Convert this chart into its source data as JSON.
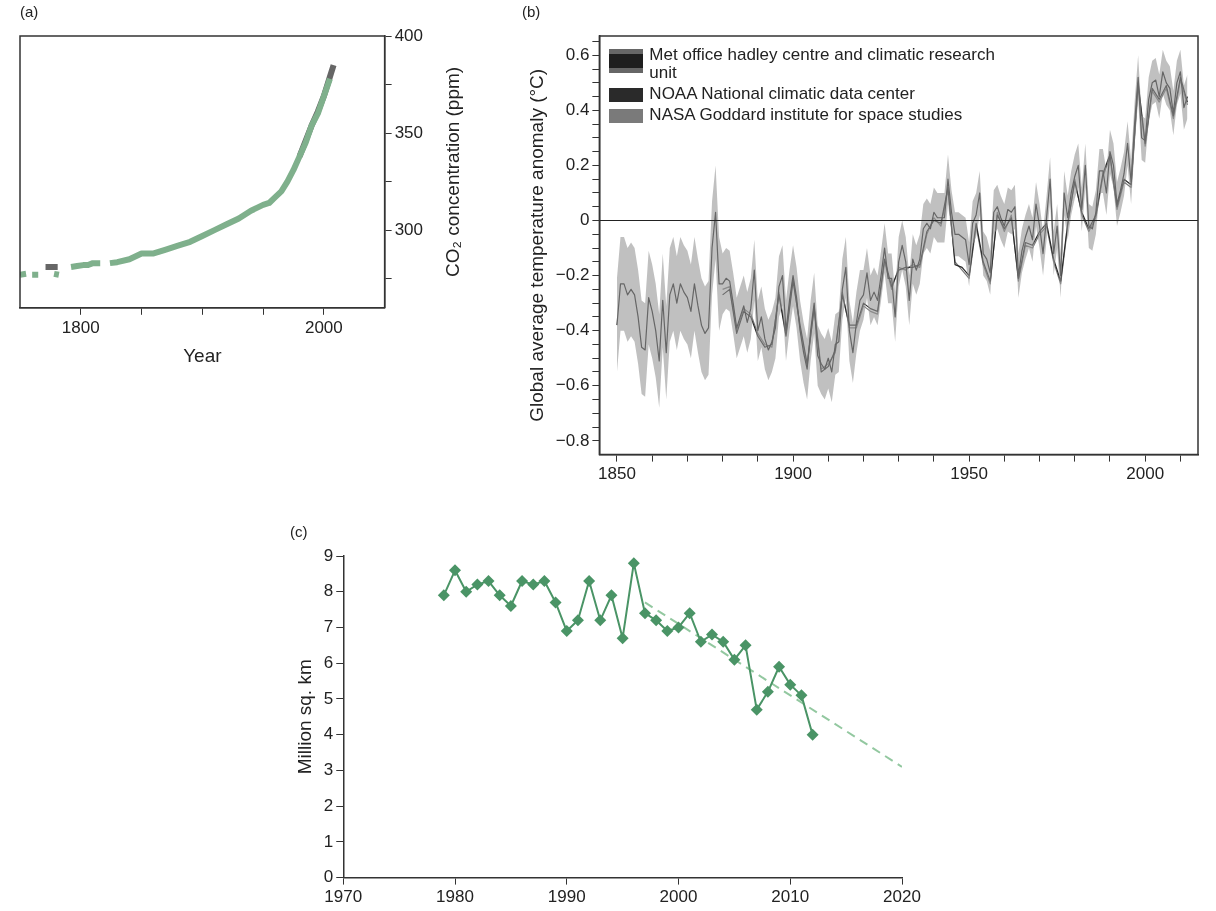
{
  "chart_data": [
    {
      "type": "line",
      "title": "(a)",
      "xlabel": "Year",
      "ylabel": "CO₂ concentration (ppm)",
      "xlim": [
        1750,
        2050
      ],
      "ylim": [
        260,
        400
      ],
      "xticks": [
        1800,
        {
          "value": 1850,
          "label": null
        },
        {
          "value": 1900,
          "label": null
        },
        {
          "value": 1950,
          "label": null
        },
        2000
      ],
      "yticks": [
        {
          "value": 275,
          "label": null
        },
        300,
        {
          "value": 325,
          "label": null
        },
        350,
        {
          "value": 375,
          "label": null
        },
        400
      ],
      "grid": false,
      "legend": false,
      "series": [
        {
          "color": "#7fb08c",
          "x": [
            1750,
            1755,
            1757,
            1760,
            1765,
            1770,
            1778,
            1782,
            1786,
            1792,
            1797,
            1802,
            1806,
            1810,
            1816,
            1820,
            1824,
            1830,
            1840,
            1850,
            1860,
            1870,
            1880,
            1890,
            1900,
            1910,
            1920,
            1930,
            1940,
            1950,
            1955,
            1960,
            1965,
            1970,
            1975,
            1980,
            1985,
            1990,
            1995,
            2000,
            2005
          ],
          "values": [
            277,
            277.5,
            null,
            277,
            277,
            null,
            277.5,
            277,
            null,
            281,
            281.5,
            282,
            282,
            283,
            283,
            null,
            283,
            283.5,
            285,
            288,
            288,
            290,
            292,
            294,
            297,
            300,
            303,
            306,
            310,
            313,
            314,
            317,
            320,
            325,
            331,
            338,
            345,
            354,
            360,
            369,
            378
          ]
        },
        {
          "color": "#666666",
          "x": [
            1771,
            1781,
            1790,
            1980,
            1985,
            1990,
            1995,
            2000,
            2005,
            2008
          ],
          "values": [
            281,
            281,
            null,
            338,
            346,
            354,
            361,
            369,
            379,
            385
          ]
        }
      ]
    },
    {
      "type": "line",
      "title": "(b)",
      "ylabel": "Global average temperature anomaly (°C)",
      "xlim": [
        1845,
        2015
      ],
      "ylim": [
        -0.85,
        0.67
      ],
      "xticks": [
        1850,
        {
          "value": 1860,
          "label": null
        },
        {
          "value": 1870,
          "label": null
        },
        {
          "value": 1880,
          "label": null
        },
        {
          "value": 1890,
          "label": null
        },
        1900,
        {
          "value": 1910,
          "label": null
        },
        {
          "value": 1920,
          "label": null
        },
        {
          "value": 1930,
          "label": null
        },
        {
          "value": 1940,
          "label": null
        },
        1950,
        {
          "value": 1960,
          "label": null
        },
        {
          "value": 1970,
          "label": null
        },
        {
          "value": 1980,
          "label": null
        },
        {
          "value": 1990,
          "label": null
        },
        2000,
        {
          "value": 2010,
          "label": null
        }
      ],
      "yticks": [
        {
          "value": -0.8,
          "label": "−0.8"
        },
        {
          "value": -0.75,
          "label": null
        },
        {
          "value": -0.7,
          "label": null
        },
        {
          "value": -0.65,
          "label": null
        },
        {
          "value": -0.6,
          "label": "−0.6"
        },
        {
          "value": -0.55,
          "label": null
        },
        {
          "value": -0.5,
          "label": null
        },
        {
          "value": -0.45,
          "label": null
        },
        {
          "value": -0.4,
          "label": "−0.4"
        },
        {
          "value": -0.35,
          "label": null
        },
        {
          "value": -0.3,
          "label": null
        },
        {
          "value": -0.25,
          "label": null
        },
        {
          "value": -0.2,
          "label": "−0.2"
        },
        {
          "value": -0.15,
          "label": null
        },
        {
          "value": -0.1,
          "label": null
        },
        {
          "value": -0.05,
          "label": null
        },
        0,
        {
          "value": 0.05,
          "label": null
        },
        {
          "value": 0.1,
          "label": null
        },
        {
          "value": 0.15,
          "label": null
        },
        0.2,
        {
          "value": 0.25,
          "label": null
        },
        {
          "value": 0.3,
          "label": null
        },
        {
          "value": 0.35,
          "label": null
        },
        0.4,
        {
          "value": 0.45,
          "label": null
        },
        {
          "value": 0.5,
          "label": null
        },
        {
          "value": 0.55,
          "label": null
        },
        0.6,
        {
          "value": 0.65,
          "label": null
        }
      ],
      "grid": false,
      "legend": "top left",
      "ref_lines": [
        {
          "axis": "y",
          "value": 0,
          "color": "#222222"
        }
      ],
      "series": [
        {
          "name": "Met office hadley centre and climatic research unit",
          "color": "#1e1e1e",
          "x": [
            1850,
            1851,
            1852,
            1853,
            1854,
            1855,
            1856,
            1857,
            1858,
            1859,
            1860,
            1861,
            1862,
            1863,
            1864,
            1865,
            1866,
            1867,
            1868,
            1869,
            1870,
            1871,
            1872,
            1873,
            1874,
            1875,
            1876,
            1877,
            1878,
            1879,
            1880,
            1881,
            1882,
            1883,
            1884,
            1885,
            1886,
            1887,
            1888,
            1889,
            1890,
            1891,
            1892,
            1893,
            1894,
            1895,
            1896,
            1897,
            1898,
            1899,
            1900,
            1901,
            1902,
            1903,
            1904,
            1905,
            1906,
            1907,
            1908,
            1909,
            1910,
            1911,
            1912,
            1913,
            1914,
            1915,
            1916,
            1917,
            1918,
            1919,
            1920,
            1921,
            1922,
            1923,
            1924,
            1925,
            1926,
            1927,
            1928,
            1929,
            1930,
            1931,
            1932,
            1933,
            1934,
            1935,
            1936,
            1937,
            1938,
            1939,
            1940,
            1941,
            1942,
            1943,
            1944,
            1945,
            1946,
            1947,
            1948,
            1949,
            1950,
            1951,
            1952,
            1953,
            1954,
            1955,
            1956,
            1957,
            1958,
            1959,
            1960,
            1961,
            1962,
            1963,
            1964,
            1965,
            1966,
            1967,
            1968,
            1969,
            1970,
            1971,
            1972,
            1973,
            1974,
            1975,
            1976,
            1977,
            1978,
            1979,
            1980,
            1981,
            1982,
            1983,
            1984,
            1985,
            1986,
            1987,
            1988,
            1989,
            1990,
            1991,
            1992,
            1993,
            1994,
            1995,
            1996,
            1997,
            1998,
            1999,
            2000,
            2001,
            2002,
            2003,
            2004,
            2005,
            2006,
            2007,
            2008,
            2009,
            2010,
            2011,
            2012
          ],
          "values": [
            -0.38,
            -0.23,
            -0.23,
            -0.27,
            -0.25,
            -0.27,
            -0.35,
            -0.46,
            -0.47,
            -0.28,
            -0.33,
            -0.4,
            -0.51,
            -0.29,
            -0.48,
            -0.27,
            -0.23,
            -0.3,
            -0.23,
            -0.26,
            -0.28,
            -0.33,
            -0.23,
            -0.31,
            -0.38,
            -0.41,
            -0.39,
            -0.1,
            0.03,
            -0.23,
            -0.23,
            -0.21,
            -0.22,
            -0.3,
            -0.39,
            -0.35,
            -0.31,
            -0.37,
            -0.32,
            -0.18,
            -0.4,
            -0.35,
            -0.43,
            -0.47,
            -0.44,
            -0.39,
            -0.24,
            -0.2,
            -0.4,
            -0.29,
            -0.2,
            -0.28,
            -0.4,
            -0.48,
            -0.54,
            -0.4,
            -0.3,
            -0.49,
            -0.52,
            -0.54,
            -0.5,
            -0.55,
            -0.45,
            -0.44,
            -0.25,
            -0.17,
            -0.4,
            -0.48,
            -0.37,
            -0.29,
            -0.27,
            -0.19,
            -0.29,
            -0.26,
            -0.29,
            -0.2,
            -0.1,
            -0.21,
            -0.21,
            -0.35,
            -0.15,
            -0.09,
            -0.15,
            -0.29,
            -0.14,
            -0.18,
            -0.14,
            -0.03,
            -0.01,
            -0.03,
            0.03,
            0.01,
            0.01,
            0.01,
            0.15,
            0.03,
            -0.05,
            -0.05,
            -0.06,
            -0.07,
            -0.16,
            -0.01,
            0.02,
            0.1,
            -0.12,
            -0.14,
            -0.19,
            0.03,
            0.05,
            0.01,
            -0.02,
            0.04,
            0.03,
            0.05,
            -0.2,
            -0.11,
            -0.06,
            -0.02,
            -0.07,
            0.06,
            -0.02,
            -0.12,
            0.01,
            0.15,
            -0.12,
            -0.02,
            -0.2,
            0.1,
            0.01,
            0.1,
            0.16,
            0.2,
            0.04,
            0.2,
            -0.02,
            -0.03,
            0.03,
            0.18,
            0.18,
            0.1,
            0.25,
            0.2,
            0.06,
            0.11,
            0.17,
            0.28,
            0.14,
            0.35,
            0.52,
            0.3,
            0.29,
            0.44,
            0.5,
            0.51,
            0.45,
            0.54,
            0.5,
            0.48,
            0.39,
            0.5,
            0.54,
            0.41,
            0.45
          ],
          "lower": [
            -0.55,
            -0.4,
            -0.4,
            -0.44,
            -0.42,
            -0.44,
            -0.52,
            -0.63,
            -0.64,
            -0.45,
            -0.5,
            -0.57,
            -0.68,
            -0.46,
            -0.65,
            -0.44,
            -0.4,
            -0.47,
            -0.4,
            -0.43,
            -0.45,
            -0.5,
            -0.4,
            -0.48,
            -0.55,
            -0.58,
            -0.56,
            -0.27,
            -0.14,
            -0.4,
            -0.34,
            -0.32,
            -0.33,
            -0.41,
            -0.5,
            -0.46,
            -0.42,
            -0.48,
            -0.43,
            -0.29,
            -0.51,
            -0.46,
            -0.54,
            -0.58,
            -0.55,
            -0.5,
            -0.35,
            -0.31,
            -0.51,
            -0.4,
            -0.31,
            -0.39,
            -0.51,
            -0.59,
            -0.65,
            -0.51,
            -0.41,
            -0.6,
            -0.63,
            -0.65,
            -0.61,
            -0.66,
            -0.56,
            -0.55,
            -0.36,
            -0.28,
            -0.51,
            -0.59,
            -0.48,
            -0.4,
            -0.36,
            -0.28,
            -0.38,
            -0.35,
            -0.38,
            -0.29,
            -0.19,
            -0.3,
            -0.3,
            -0.44,
            -0.24,
            -0.18,
            -0.24,
            -0.38,
            -0.23,
            -0.27,
            -0.23,
            -0.12,
            -0.1,
            -0.12,
            -0.06,
            -0.08,
            -0.08,
            -0.08,
            0.06,
            -0.05,
            -0.13,
            -0.13,
            -0.14,
            -0.15,
            -0.24,
            -0.09,
            -0.06,
            0.02,
            -0.2,
            -0.22,
            -0.27,
            -0.05,
            -0.03,
            -0.07,
            -0.1,
            -0.04,
            -0.05,
            -0.03,
            -0.28,
            -0.19,
            -0.14,
            -0.1,
            -0.15,
            -0.02,
            -0.1,
            -0.2,
            -0.07,
            0.07,
            -0.2,
            -0.1,
            -0.28,
            0.02,
            -0.07,
            0.02,
            0.08,
            0.12,
            -0.04,
            0.12,
            -0.1,
            -0.11,
            -0.05,
            0.1,
            0.1,
            0.02,
            0.17,
            0.12,
            -0.02,
            0.03,
            0.09,
            0.2,
            0.06,
            0.27,
            0.44,
            0.22,
            0.21,
            0.36,
            0.42,
            0.43,
            0.37,
            0.46,
            0.42,
            0.4,
            0.31,
            0.42,
            0.46,
            0.33,
            0.37
          ],
          "upper": [
            -0.21,
            -0.06,
            -0.06,
            -0.1,
            -0.08,
            -0.1,
            -0.18,
            -0.29,
            -0.3,
            -0.11,
            -0.16,
            -0.23,
            -0.34,
            -0.12,
            -0.31,
            -0.1,
            -0.06,
            -0.13,
            -0.06,
            -0.09,
            -0.11,
            -0.16,
            -0.06,
            -0.14,
            -0.21,
            -0.24,
            -0.22,
            0.07,
            0.2,
            -0.06,
            -0.12,
            -0.1,
            -0.11,
            -0.19,
            -0.28,
            -0.24,
            -0.2,
            -0.26,
            -0.21,
            -0.07,
            -0.29,
            -0.24,
            -0.32,
            -0.36,
            -0.33,
            -0.28,
            -0.13,
            -0.09,
            -0.29,
            -0.18,
            -0.09,
            -0.17,
            -0.29,
            -0.37,
            -0.43,
            -0.29,
            -0.19,
            -0.38,
            -0.41,
            -0.43,
            -0.39,
            -0.44,
            -0.34,
            -0.33,
            -0.14,
            -0.06,
            -0.29,
            -0.37,
            -0.26,
            -0.18,
            -0.18,
            -0.1,
            -0.2,
            -0.17,
            -0.2,
            -0.11,
            -0.01,
            -0.12,
            -0.12,
            -0.26,
            -0.06,
            0.0,
            -0.06,
            -0.2,
            -0.05,
            -0.09,
            -0.05,
            0.06,
            0.08,
            0.06,
            0.12,
            0.1,
            0.1,
            0.1,
            0.24,
            0.11,
            0.03,
            0.03,
            0.02,
            0.01,
            -0.08,
            0.07,
            0.1,
            0.18,
            -0.04,
            -0.06,
            -0.11,
            0.11,
            0.13,
            0.09,
            0.06,
            0.12,
            0.11,
            0.13,
            -0.12,
            -0.03,
            0.02,
            0.06,
            0.01,
            0.14,
            0.06,
            -0.04,
            0.09,
            0.23,
            -0.04,
            0.06,
            -0.12,
            0.18,
            0.09,
            0.18,
            0.24,
            0.28,
            0.12,
            0.28,
            0.06,
            0.05,
            0.11,
            0.26,
            0.26,
            0.18,
            0.33,
            0.28,
            0.14,
            0.19,
            0.25,
            0.36,
            0.22,
            0.43,
            0.6,
            0.38,
            0.37,
            0.52,
            0.58,
            0.59,
            0.53,
            0.62,
            0.58,
            0.56,
            0.47,
            0.58,
            0.62,
            0.49,
            0.53
          ]
        },
        {
          "name": "NOAA National climatic data center",
          "color": "#2a2a2a",
          "x": [
            1880,
            1882,
            1884,
            1886,
            1888,
            1890,
            1892,
            1894,
            1896,
            1898,
            1900,
            1902,
            1904,
            1906,
            1908,
            1910,
            1912,
            1914,
            1916,
            1918,
            1920,
            1922,
            1924,
            1926,
            1928,
            1930,
            1932,
            1934,
            1936,
            1938,
            1940,
            1942,
            1944,
            1946,
            1948,
            1950,
            1952,
            1954,
            1956,
            1958,
            1960,
            1962,
            1964,
            1966,
            1968,
            1970,
            1972,
            1974,
            1976,
            1978,
            1980,
            1982,
            1984,
            1986,
            1988,
            1990,
            1992,
            1994,
            1996,
            1998,
            2000,
            2002,
            2004,
            2006,
            2008,
            2010,
            2012
          ],
          "values": [
            -0.27,
            -0.25,
            -0.41,
            -0.33,
            -0.35,
            -0.42,
            -0.46,
            -0.45,
            -0.27,
            -0.42,
            -0.22,
            -0.38,
            -0.52,
            -0.32,
            -0.55,
            -0.53,
            -0.47,
            -0.27,
            -0.38,
            -0.38,
            -0.3,
            -0.32,
            -0.33,
            -0.14,
            -0.24,
            -0.18,
            -0.17,
            -0.17,
            -0.16,
            -0.04,
            0.0,
            -0.01,
            0.12,
            -0.16,
            -0.17,
            -0.2,
            -0.01,
            -0.15,
            -0.22,
            0.02,
            -0.03,
            0.01,
            -0.21,
            -0.08,
            -0.09,
            -0.04,
            -0.01,
            -0.14,
            -0.22,
            -0.01,
            0.14,
            0.03,
            -0.03,
            0.02,
            0.17,
            0.24,
            0.05,
            0.15,
            0.13,
            0.5,
            0.28,
            0.48,
            0.44,
            0.49,
            0.38,
            0.52,
            0.43
          ]
        },
        {
          "name": "NASA Goddard institute for space studies",
          "color": "#7a7a7a",
          "x": [
            1880,
            1882,
            1884,
            1886,
            1888,
            1890,
            1892,
            1894,
            1896,
            1898,
            1900,
            1902,
            1904,
            1906,
            1908,
            1910,
            1912,
            1914,
            1916,
            1918,
            1920,
            1922,
            1924,
            1926,
            1928,
            1930,
            1932,
            1934,
            1936,
            1938,
            1940,
            1942,
            1944,
            1946,
            1948,
            1950,
            1952,
            1954,
            1956,
            1958,
            1960,
            1962,
            1964,
            1966,
            1968,
            1970,
            1972,
            1974,
            1976,
            1978,
            1980,
            1982,
            1984,
            1986,
            1988,
            1990,
            1992,
            1994,
            1996,
            1998,
            2000,
            2002,
            2004,
            2006,
            2008,
            2010,
            2012
          ],
          "values": [
            -0.25,
            -0.24,
            -0.4,
            -0.32,
            -0.34,
            -0.41,
            -0.45,
            -0.46,
            -0.26,
            -0.41,
            -0.21,
            -0.39,
            -0.53,
            -0.31,
            -0.54,
            -0.52,
            -0.48,
            -0.26,
            -0.39,
            -0.39,
            -0.31,
            -0.33,
            -0.34,
            -0.15,
            -0.25,
            -0.17,
            -0.18,
            -0.16,
            -0.17,
            -0.05,
            0.01,
            -0.02,
            0.11,
            -0.15,
            -0.18,
            -0.21,
            -0.02,
            -0.16,
            -0.23,
            0.03,
            -0.04,
            0.02,
            -0.22,
            -0.09,
            -0.1,
            -0.05,
            -0.02,
            -0.15,
            -0.23,
            -0.02,
            0.15,
            0.02,
            -0.04,
            0.01,
            0.16,
            0.23,
            0.04,
            0.14,
            0.12,
            0.49,
            0.27,
            0.47,
            0.43,
            0.48,
            0.37,
            0.51,
            0.42
          ]
        }
      ]
    },
    {
      "type": "line",
      "title": "(c)",
      "ylabel": "Million sq. km",
      "xlim": [
        1970,
        2020
      ],
      "ylim": [
        0,
        9
      ],
      "xticks": [
        1970,
        1980,
        1990,
        2000,
        2010,
        2020
      ],
      "yticks": [
        0,
        1,
        2,
        3,
        4,
        5,
        6,
        7,
        8,
        9
      ],
      "grid": false,
      "legend": false,
      "marker": "diamond",
      "line_style": "solid",
      "series": [
        {
          "color": "#4a9466",
          "x": [
            1979,
            1980,
            1981,
            1982,
            1983,
            1984,
            1985,
            1986,
            1987,
            1988,
            1989,
            1990,
            1991,
            1992,
            1993,
            1994,
            1995,
            1996,
            1997,
            1998,
            1999,
            2000,
            2001,
            2002,
            2003,
            2004,
            2005,
            2006,
            2007,
            2008,
            2009,
            2010,
            2011,
            2012
          ],
          "values": [
            7.9,
            8.6,
            8.0,
            8.2,
            8.3,
            7.9,
            7.6,
            8.3,
            8.2,
            8.3,
            7.7,
            6.9,
            7.2,
            8.3,
            7.2,
            7.9,
            6.7,
            8.8,
            7.4,
            7.2,
            6.9,
            7.0,
            7.4,
            6.6,
            6.8,
            6.6,
            6.1,
            6.5,
            4.7,
            5.2,
            5.9,
            5.4,
            5.1,
            4.0
          ]
        },
        {
          "type": "line",
          "color": "#93c8a0",
          "marker": "none",
          "line_style": "dashed",
          "x": [
            1997,
            2020
          ],
          "values": [
            7.7,
            3.1
          ]
        }
      ]
    }
  ]
}
